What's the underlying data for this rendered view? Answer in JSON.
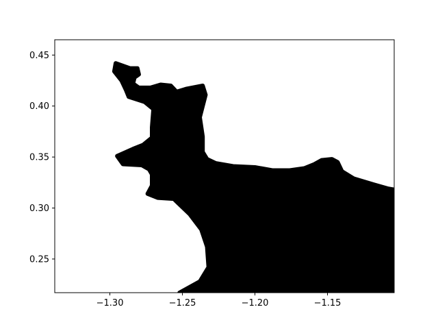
{
  "chart_data": {
    "type": "area",
    "title": "",
    "xlabel": "",
    "ylabel": "",
    "xlim": [
      -1.338,
      -1.104
    ],
    "ylim": [
      0.217,
      0.465
    ],
    "grid": false,
    "legend": "none",
    "x_ticks": [
      {
        "value": -1.3,
        "label": "−1.30"
      },
      {
        "value": -1.25,
        "label": "−1.25"
      },
      {
        "value": -1.2,
        "label": "−1.20"
      },
      {
        "value": -1.15,
        "label": "−1.15"
      }
    ],
    "y_ticks": [
      {
        "value": 0.25,
        "label": "0.25"
      },
      {
        "value": 0.3,
        "label": "0.30"
      },
      {
        "value": 0.35,
        "label": "0.35"
      },
      {
        "value": 0.4,
        "label": "0.40"
      },
      {
        "value": 0.45,
        "label": "0.45"
      }
    ],
    "series": [
      {
        "color": "#000000",
        "points": [
          [
            -1.296,
            0.442
          ],
          [
            -1.292,
            0.44
          ],
          [
            -1.286,
            0.437
          ],
          [
            -1.281,
            0.437
          ],
          [
            -1.28,
            0.431
          ],
          [
            -1.283,
            0.428
          ],
          [
            -1.284,
            0.422
          ],
          [
            -1.28,
            0.418
          ],
          [
            -1.272,
            0.418
          ],
          [
            -1.265,
            0.421
          ],
          [
            -1.258,
            0.42
          ],
          [
            -1.254,
            0.414
          ],
          [
            -1.247,
            0.417
          ],
          [
            -1.236,
            0.42
          ],
          [
            -1.234,
            0.411
          ],
          [
            -1.238,
            0.389
          ],
          [
            -1.236,
            0.37
          ],
          [
            -1.236,
            0.355
          ],
          [
            -1.233,
            0.348
          ],
          [
            -1.227,
            0.344
          ],
          [
            -1.215,
            0.341
          ],
          [
            -1.2,
            0.34
          ],
          [
            -1.188,
            0.337
          ],
          [
            -1.176,
            0.337
          ],
          [
            -1.166,
            0.339
          ],
          [
            -1.159,
            0.343
          ],
          [
            -1.154,
            0.347
          ],
          [
            -1.147,
            0.348
          ],
          [
            -1.143,
            0.345
          ],
          [
            -1.14,
            0.336
          ],
          [
            -1.132,
            0.329
          ],
          [
            -1.118,
            0.323
          ],
          [
            -1.108,
            0.319
          ],
          [
            -1.104,
            0.318
          ],
          [
            -1.104,
            0.217
          ],
          [
            -1.252,
            0.217
          ],
          [
            -1.238,
            0.228
          ],
          [
            -1.232,
            0.242
          ],
          [
            -1.233,
            0.262
          ],
          [
            -1.237,
            0.279
          ],
          [
            -1.245,
            0.294
          ],
          [
            -1.256,
            0.309
          ],
          [
            -1.267,
            0.31
          ],
          [
            -1.274,
            0.314
          ],
          [
            -1.271,
            0.322
          ],
          [
            -1.271,
            0.333
          ],
          [
            -1.273,
            0.338
          ],
          [
            -1.278,
            0.342
          ],
          [
            -1.291,
            0.343
          ],
          [
            -1.295,
            0.351
          ],
          [
            -1.284,
            0.358
          ],
          [
            -1.277,
            0.362
          ],
          [
            -1.271,
            0.369
          ],
          [
            -1.271,
            0.379
          ],
          [
            -1.27,
            0.397
          ],
          [
            -1.276,
            0.404
          ],
          [
            -1.287,
            0.409
          ],
          [
            -1.289,
            0.416
          ],
          [
            -1.292,
            0.425
          ],
          [
            -1.297,
            0.434
          ],
          [
            -1.296,
            0.442
          ]
        ]
      }
    ]
  }
}
